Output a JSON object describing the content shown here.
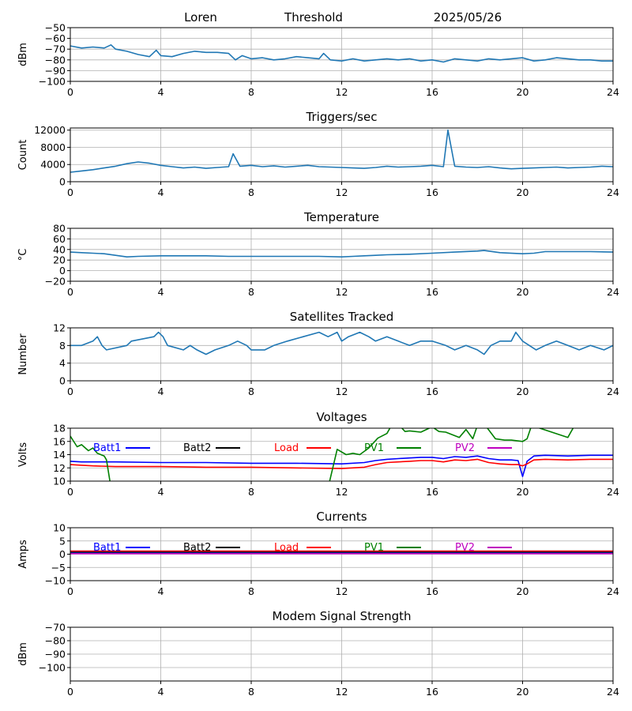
{
  "header": {
    "station": "Loren",
    "mode": "Threshold",
    "date": "2025/05/26"
  },
  "colors": {
    "series_default": "#1f77b4",
    "grid": "#b0b0b0",
    "axis": "#000000"
  },
  "chart_data": [
    {
      "id": "signal",
      "type": "line",
      "title": "",
      "ylabel": "dBm",
      "xlim": [
        0,
        24
      ],
      "ylim": [
        -100,
        -50
      ],
      "xticks": [
        "0",
        "4",
        "8",
        "12",
        "16",
        "20",
        "24"
      ],
      "yticks": [
        "−100",
        "−90",
        "−80",
        "−70",
        "−60",
        "−50"
      ],
      "grid": true,
      "series": [
        {
          "color": "#1f77b4",
          "x": [
            0,
            0.5,
            1,
            1.5,
            1.8,
            2,
            2.5,
            3,
            3.5,
            3.8,
            4,
            4.5,
            5,
            5.5,
            6,
            6.5,
            7,
            7.3,
            7.6,
            8,
            8.5,
            9,
            9.5,
            10,
            10.5,
            11,
            11.2,
            11.5,
            12,
            12.5,
            13,
            13.5,
            14,
            14.5,
            15,
            15.5,
            16,
            16.5,
            17,
            17.5,
            18,
            18.5,
            19,
            19.5,
            20,
            20.5,
            21,
            21.5,
            22,
            22.5,
            23,
            23.5,
            24
          ],
          "y": [
            -67,
            -69,
            -68,
            -69,
            -66,
            -70,
            -72,
            -75,
            -77,
            -71,
            -76,
            -77,
            -74,
            -72,
            -73,
            -73,
            -74,
            -80,
            -76,
            -79,
            -78,
            -80,
            -79,
            -77,
            -78,
            -79,
            -74,
            -80,
            -81,
            -79,
            -81,
            -80,
            -79,
            -80,
            -79,
            -81,
            -80,
            -82,
            -79,
            -80,
            -81,
            -79,
            -80,
            -79,
            -78,
            -81,
            -80,
            -78,
            -79,
            -80,
            -80,
            -81,
            -81
          ]
        }
      ]
    },
    {
      "id": "triggers",
      "type": "line",
      "title": "Triggers/sec",
      "ylabel": "Count",
      "xlim": [
        0,
        24
      ],
      "ylim": [
        0,
        12500
      ],
      "xticks": [
        "0",
        "4",
        "8",
        "12",
        "16",
        "20",
        "24"
      ],
      "yticks": [
        "0",
        "4000",
        "8000",
        "12000"
      ],
      "grid": true,
      "series": [
        {
          "color": "#1f77b4",
          "x": [
            0,
            0.5,
            1,
            1.5,
            2,
            2.5,
            3,
            3.5,
            4,
            4.5,
            5,
            5.5,
            6,
            6.5,
            7,
            7.2,
            7.5,
            8,
            8.5,
            9,
            9.5,
            10,
            10.5,
            11,
            11.5,
            12,
            12.5,
            13,
            13.5,
            14,
            14.5,
            15,
            15.5,
            16,
            16.5,
            16.7,
            17,
            17.5,
            18,
            18.5,
            19,
            19.5,
            20,
            20.5,
            21,
            21.5,
            22,
            22.5,
            23,
            23.5,
            24
          ],
          "y": [
            2200,
            2500,
            2800,
            3200,
            3600,
            4200,
            4600,
            4300,
            3800,
            3500,
            3200,
            3400,
            3100,
            3300,
            3500,
            6500,
            3600,
            3800,
            3500,
            3700,
            3400,
            3600,
            3800,
            3500,
            3400,
            3300,
            3200,
            3100,
            3300,
            3600,
            3400,
            3500,
            3600,
            3800,
            3500,
            12000,
            3600,
            3400,
            3300,
            3500,
            3200,
            3000,
            3100,
            3200,
            3300,
            3400,
            3200,
            3300,
            3400,
            3600,
            3500
          ]
        }
      ]
    },
    {
      "id": "temperature",
      "type": "line",
      "title": "Temperature",
      "ylabel": "°C",
      "xlim": [
        0,
        24
      ],
      "ylim": [
        -20,
        80
      ],
      "xticks": [
        "0",
        "4",
        "8",
        "12",
        "16",
        "20",
        "24"
      ],
      "yticks": [
        "−20",
        "0",
        "20",
        "40",
        "60",
        "80"
      ],
      "grid": true,
      "series": [
        {
          "color": "#1f77b4",
          "x": [
            0,
            0.5,
            1,
            1.5,
            2,
            2.5,
            3,
            4,
            5,
            6,
            7,
            8,
            9,
            10,
            11,
            12,
            12.5,
            13,
            13.5,
            14,
            15,
            16,
            17,
            18,
            18.3,
            19,
            20,
            20.5,
            21,
            22,
            23,
            24
          ],
          "y": [
            35,
            34,
            33,
            32,
            29,
            26,
            27,
            28,
            28,
            28,
            27,
            27,
            27,
            27,
            27,
            26,
            27,
            28,
            29,
            30,
            31,
            33,
            35,
            37,
            38,
            34,
            32,
            33,
            36,
            36,
            36,
            35
          ]
        }
      ]
    },
    {
      "id": "satellites",
      "type": "line",
      "title": "Satellites Tracked",
      "ylabel": "Number",
      "xlim": [
        0,
        24
      ],
      "ylim": [
        0,
        12
      ],
      "xticks": [
        "0",
        "4",
        "8",
        "12",
        "16",
        "20",
        "24"
      ],
      "yticks": [
        "0",
        "4",
        "8",
        "12"
      ],
      "grid": true,
      "series": [
        {
          "color": "#1f77b4",
          "x": [
            0,
            0.5,
            1,
            1.2,
            1.4,
            1.6,
            2.5,
            2.7,
            3.7,
            3.9,
            4.1,
            4.3,
            5,
            5.3,
            5.6,
            6,
            6.4,
            7,
            7.4,
            7.8,
            8,
            8.6,
            9,
            9.6,
            10.3,
            11,
            11.4,
            11.8,
            12,
            12.3,
            12.8,
            13.2,
            13.5,
            14,
            14.5,
            15,
            15.5,
            16,
            16.6,
            17,
            17.5,
            18,
            18.3,
            18.6,
            19,
            19.5,
            19.7,
            20,
            20.6,
            21,
            21.5,
            22,
            22.5,
            23,
            23.6,
            24
          ],
          "y": [
            8,
            8,
            9,
            10,
            8,
            7,
            8,
            9,
            10,
            11,
            10,
            8,
            7,
            8,
            7,
            6,
            7,
            8,
            9,
            8,
            7,
            7,
            8,
            9,
            10,
            11,
            10,
            11,
            9,
            10,
            11,
            10,
            9,
            10,
            9,
            8,
            9,
            9,
            8,
            7,
            8,
            7,
            6,
            8,
            9,
            9,
            11,
            9,
            7,
            8,
            9,
            8,
            7,
            8,
            7,
            8
          ]
        }
      ]
    },
    {
      "id": "voltages",
      "type": "line",
      "title": "Voltages",
      "ylabel": "Volts",
      "xlim": [
        0,
        24
      ],
      "ylim": [
        10,
        18
      ],
      "xticks": [
        "0",
        "4",
        "8",
        "12",
        "16",
        "20",
        "24"
      ],
      "yticks": [
        "10",
        "12",
        "14",
        "16",
        "18"
      ],
      "grid": true,
      "series": [
        {
          "name": "Batt1",
          "color": "#0000ff",
          "x": [
            0,
            0.5,
            1,
            2,
            4,
            6,
            8,
            10,
            12,
            13,
            13.5,
            14,
            14.5,
            15,
            15.5,
            16,
            16.5,
            17,
            17.5,
            18,
            18.5,
            19,
            19.5,
            19.8,
            20,
            20.2,
            20.5,
            21,
            22,
            23,
            24
          ],
          "y": [
            13.0,
            12.9,
            12.9,
            12.9,
            12.8,
            12.8,
            12.7,
            12.7,
            12.6,
            12.8,
            13.1,
            13.3,
            13.4,
            13.5,
            13.6,
            13.6,
            13.4,
            13.7,
            13.6,
            13.8,
            13.4,
            13.2,
            13.2,
            13.1,
            10.7,
            13.0,
            13.8,
            13.9,
            13.8,
            13.9,
            13.9
          ]
        },
        {
          "name": "Batt2",
          "color": "#000000",
          "x": [],
          "y": []
        },
        {
          "name": "Load",
          "color": "#ff0000",
          "x": [
            0,
            0.5,
            1,
            2,
            4,
            6,
            8,
            10,
            12,
            13,
            13.5,
            14,
            14.5,
            15,
            15.5,
            16,
            16.5,
            17,
            17.5,
            18,
            18.5,
            19,
            19.5,
            19.8,
            20,
            20.2,
            20.5,
            21,
            22,
            23,
            24
          ],
          "y": [
            12.5,
            12.4,
            12.3,
            12.2,
            12.2,
            12.1,
            12.1,
            12.0,
            11.9,
            12.1,
            12.5,
            12.8,
            12.9,
            13.0,
            13.1,
            13.1,
            12.9,
            13.2,
            13.1,
            13.3,
            12.8,
            12.6,
            12.5,
            12.5,
            12.3,
            12.6,
            13.2,
            13.3,
            13.2,
            13.3,
            13.3
          ]
        },
        {
          "name": "PV1",
          "color": "#008000",
          "x": [
            0,
            0.3,
            0.5,
            0.8,
            1,
            1.2,
            1.5,
            1.6,
            1.8,
            11.4,
            11.8,
            12.2,
            12.5,
            12.8,
            13.2,
            13.6,
            14.0,
            14.2,
            14.5,
            14.8,
            15.0,
            15.5,
            16,
            16.3,
            16.6,
            17.2,
            17.5,
            17.8,
            18.0,
            18.4,
            18.8,
            19.2,
            19.5,
            20,
            20.2,
            20.4,
            22,
            22.3
          ],
          "y": [
            16.8,
            15.2,
            15.5,
            14.6,
            15.0,
            14.2,
            13.8,
            13.2,
            9.0,
            9.0,
            14.8,
            14.0,
            14.2,
            14.0,
            15.0,
            16.5,
            17.2,
            18.4,
            18.6,
            17.5,
            17.6,
            17.4,
            18.2,
            17.5,
            17.4,
            16.6,
            17.8,
            16.4,
            18.4,
            18.2,
            16.4,
            16.2,
            16.2,
            16.0,
            16.4,
            18.4,
            16.6,
            18.4
          ]
        },
        {
          "name": "PV2",
          "color": "#bf00bf",
          "x": [],
          "y": []
        }
      ],
      "legend": "top"
    },
    {
      "id": "currents",
      "type": "line",
      "title": "Currents",
      "ylabel": "Amps",
      "xlim": [
        0,
        24
      ],
      "ylim": [
        -10,
        10
      ],
      "xticks": [
        "0",
        "4",
        "8",
        "12",
        "16",
        "20",
        "24"
      ],
      "yticks": [
        "−10",
        "−5",
        "0",
        "5",
        "10"
      ],
      "grid": true,
      "series": [
        {
          "name": "Batt1",
          "color": "#0000ff",
          "x": [
            0,
            24
          ],
          "y": [
            0.6,
            0.6
          ]
        },
        {
          "name": "Batt2",
          "color": "#000000",
          "x": [
            0,
            24
          ],
          "y": [
            0.9,
            0.9
          ]
        },
        {
          "name": "Load",
          "color": "#ff0000",
          "x": [
            0,
            24
          ],
          "y": [
            1.2,
            1.2
          ]
        },
        {
          "name": "PV1",
          "color": "#008000",
          "x": [
            0,
            24
          ],
          "y": [
            0.3,
            0.3
          ]
        },
        {
          "name": "PV2",
          "color": "#bf00bf",
          "x": [
            0,
            24
          ],
          "y": [
            0.2,
            0.2
          ]
        }
      ],
      "legend": "top"
    },
    {
      "id": "modem",
      "type": "line",
      "title": "Modem Signal Strength",
      "ylabel": "dBm",
      "xlim": [
        0,
        24
      ],
      "ylim": [
        -110,
        -70
      ],
      "xticks": [
        "0",
        "4",
        "8",
        "12",
        "16",
        "20",
        "24"
      ],
      "yticks": [
        "−100",
        "−90",
        "−80",
        "−70"
      ],
      "ytick_values": [
        -100,
        -90,
        -80,
        -70
      ],
      "grid": true,
      "series": []
    }
  ]
}
